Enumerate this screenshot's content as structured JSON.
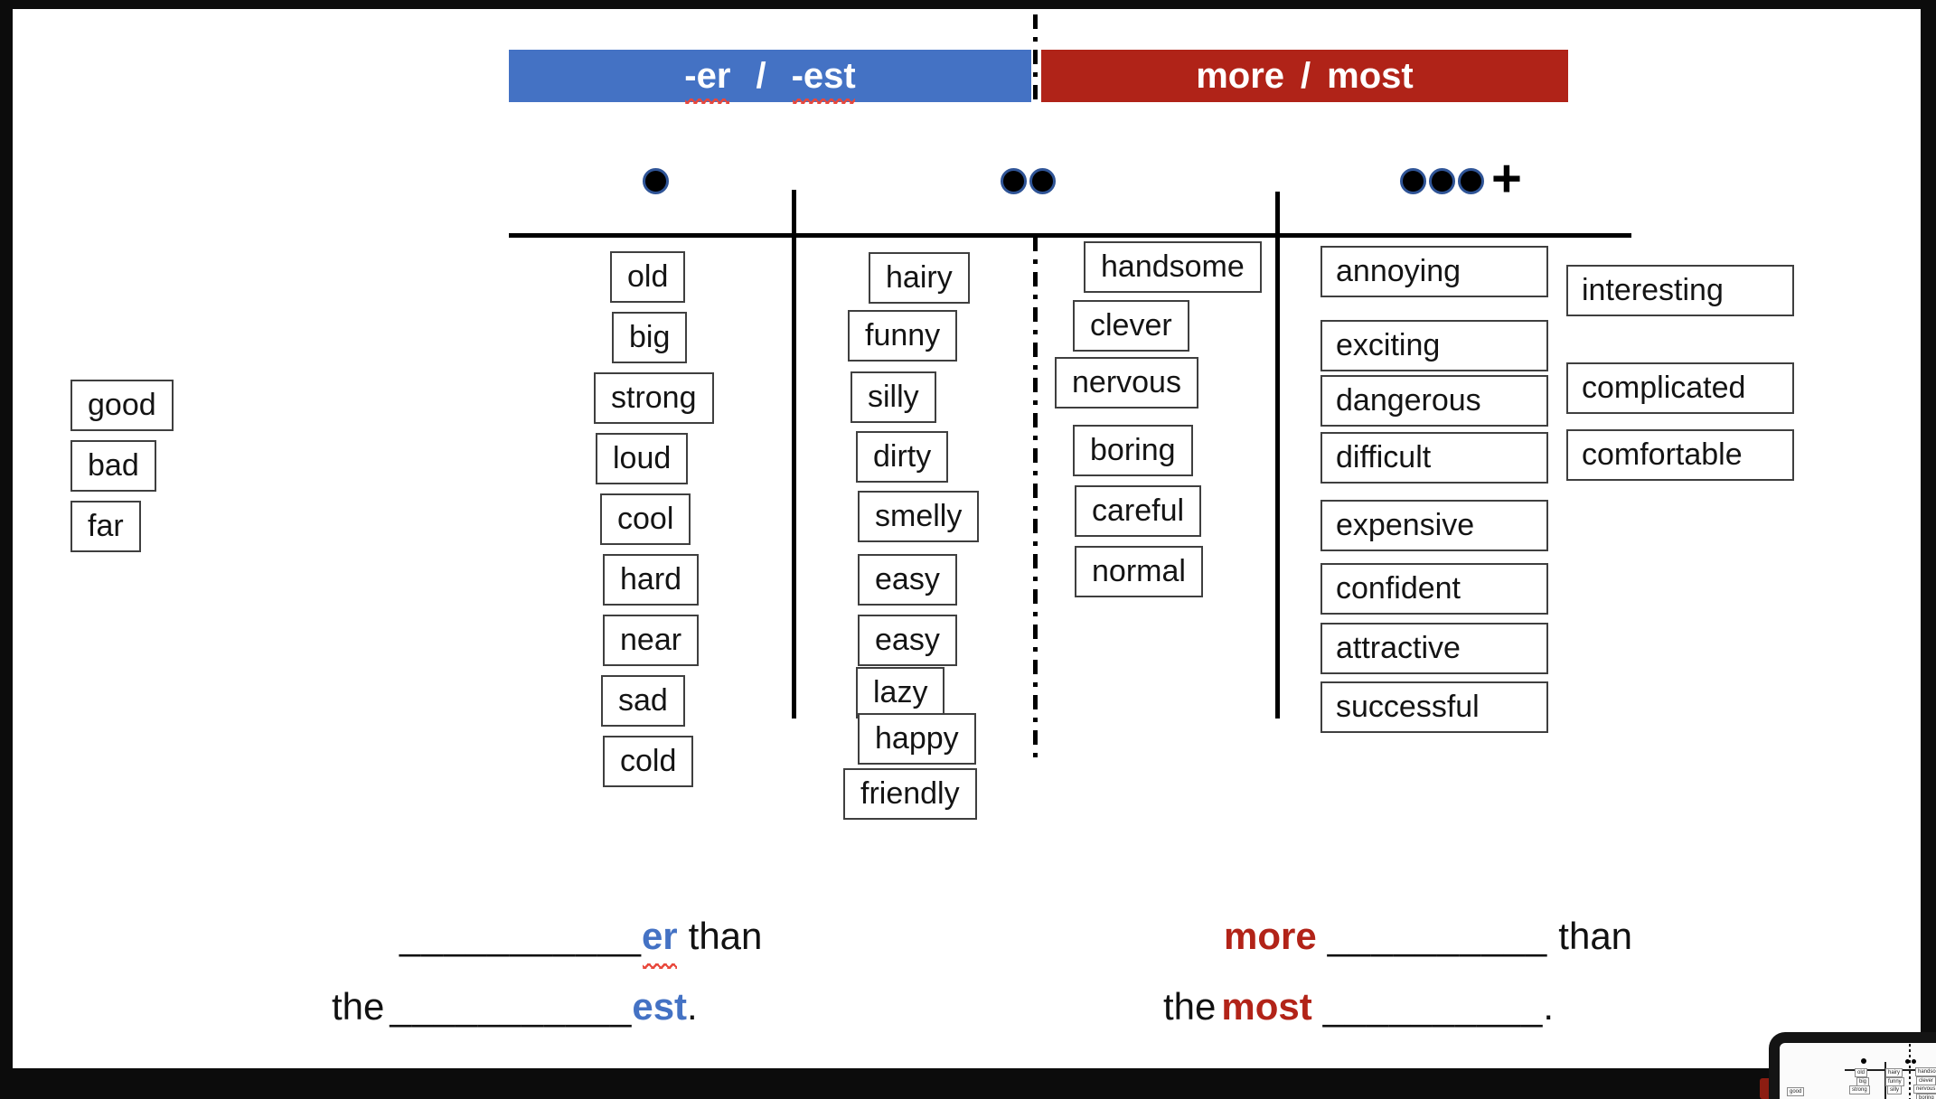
{
  "header": {
    "er_est": {
      "part1": "-er",
      "slash": "/",
      "part2": "-est"
    },
    "more_most": {
      "part1": "more",
      "slash": "/",
      "part2": "most"
    }
  },
  "syllables": {
    "plus": "+"
  },
  "columns": {
    "irregular": {
      "words": [
        "good",
        "bad",
        "far"
      ]
    },
    "one_syllable": {
      "words": [
        "old",
        "big",
        "strong",
        "loud",
        "cool",
        "hard",
        "near",
        "sad",
        "cold"
      ]
    },
    "two_syllable_er": {
      "words": [
        "hairy",
        "funny",
        "silly",
        "dirty",
        "smelly",
        "easy",
        "easy",
        "lazy",
        "happy",
        "friendly"
      ]
    },
    "two_syllable_more": {
      "words": [
        "handsome",
        "clever",
        "nervous",
        "boring",
        "careful",
        "normal"
      ]
    },
    "three_plus": {
      "words": [
        "annoying",
        "exciting",
        "dangerous",
        "difficult",
        "expensive",
        "confident",
        "attractive",
        "successful"
      ]
    },
    "three_plus_extra": {
      "words": [
        "interesting",
        "complicated",
        "comfortable"
      ]
    }
  },
  "sentences": {
    "s1": {
      "blank": "___________",
      "er": "er",
      "than": "than"
    },
    "s2": {
      "the": "the",
      "blank": "___________",
      "est": "est",
      "period": "."
    },
    "s3": {
      "more": "more",
      "blank": "__________",
      "than": "than"
    },
    "s4": {
      "the": "the",
      "most": "most",
      "blank": "__________",
      "period": "."
    }
  },
  "preview": {
    "words": [
      "old",
      "hairy",
      "handso",
      "big",
      "funny",
      "clever",
      "strong",
      "silly",
      "nervous",
      "good",
      "boring"
    ]
  },
  "colors": {
    "header_blue": "#4472C4",
    "header_red": "#B02318",
    "suffix_blue": "#4472C4",
    "more_most_red": "#B22318",
    "squiggle_red": "#E8473B",
    "frame_black": "#0C0C0C"
  }
}
